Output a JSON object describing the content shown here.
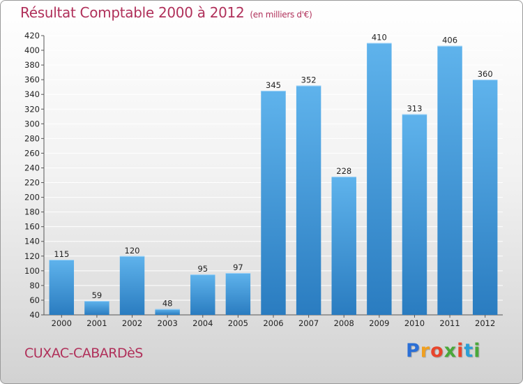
{
  "title": "Résultat Comptable 2000 à 2012",
  "title_unit": "(en milliers d'€)",
  "city": "CUXAC-CABARDèS",
  "logo": {
    "letters": [
      "P",
      "r",
      "o",
      "x",
      "i",
      "t",
      "i"
    ],
    "colors": [
      "#2b6fd6",
      "#f0a020",
      "#e8452c",
      "#4aa83a",
      "#e8452c",
      "#2b9fd6",
      "#4aa83a"
    ]
  },
  "colors": {
    "bar_light": "#5fb3ec",
    "bar_dark": "#2a7cc0",
    "grid": "#ffffff",
    "title": "#b0305a"
  },
  "chart_data": {
    "type": "bar",
    "title": "Résultat Comptable 2000 à 2012",
    "subtitle": "(en milliers d'€)",
    "categories": [
      "2000",
      "2001",
      "2002",
      "2003",
      "2004",
      "2005",
      "2006",
      "2007",
      "2008",
      "2009",
      "2010",
      "2011",
      "2012"
    ],
    "values": [
      115,
      59,
      120,
      48,
      95,
      97,
      345,
      352,
      228,
      410,
      313,
      406,
      360
    ],
    "ylim": [
      40,
      420
    ],
    "yticks": [
      40,
      60,
      80,
      100,
      120,
      140,
      160,
      180,
      200,
      220,
      240,
      260,
      280,
      300,
      320,
      340,
      360,
      380,
      400,
      420
    ],
    "grid": true,
    "xlabel": "",
    "ylabel": ""
  }
}
